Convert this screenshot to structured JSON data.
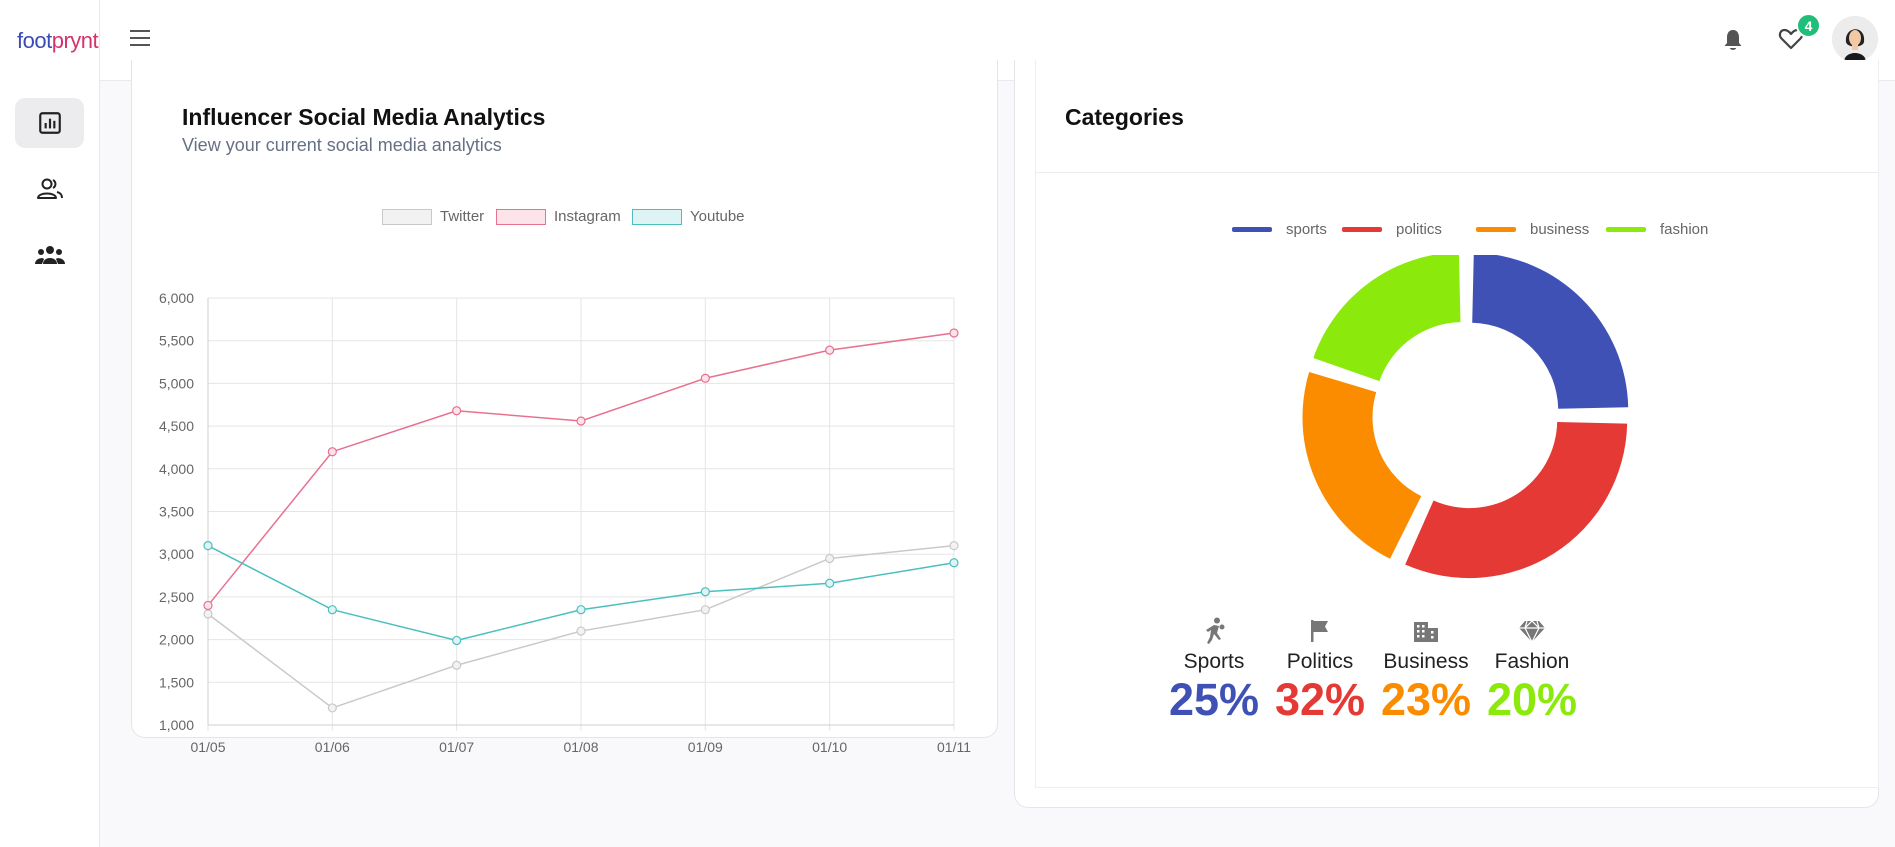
{
  "app": {
    "logo_part1": "foot",
    "logo_part2": "prynt"
  },
  "sidebar": {
    "items": [
      {
        "name": "analytics",
        "icon": "bar-chart-icon",
        "active": true
      },
      {
        "name": "users",
        "icon": "users-icon",
        "active": false
      },
      {
        "name": "groups",
        "icon": "group-icon",
        "active": false
      }
    ]
  },
  "header": {
    "notification_count": "4"
  },
  "analytics_card": {
    "title": "Influencer Social Media Analytics",
    "subtitle": "View your current social media analytics"
  },
  "categories_card": {
    "title": "Categories",
    "stats": [
      {
        "label": "Sports",
        "percent": "25%",
        "color": "#3f51b5",
        "icon": "sports-icon"
      },
      {
        "label": "Politics",
        "percent": "32%",
        "color": "#e53935",
        "icon": "flag-icon"
      },
      {
        "label": "Business",
        "percent": "23%",
        "color": "#fb8c00",
        "icon": "building-icon"
      },
      {
        "label": "Fashion",
        "percent": "20%",
        "color": "#8bea0c",
        "icon": "diamond-icon"
      }
    ]
  },
  "chart_data": [
    {
      "type": "line",
      "x": [
        "01/05",
        "01/06",
        "01/07",
        "01/08",
        "01/09",
        "01/10",
        "01/11"
      ],
      "ylim": [
        1000,
        6000
      ],
      "yticks": [
        "6,000",
        "5,500",
        "5,000",
        "4,500",
        "4,000",
        "3,500",
        "3,000",
        "2,500",
        "2,000",
        "1,500",
        "1,000"
      ],
      "grid": true,
      "legend_position": "top",
      "series": [
        {
          "name": "Twitter",
          "color": "#c9c9c9",
          "fill": "#f2f2f2",
          "values": [
            2300,
            1200,
            1700,
            2100,
            2350,
            2950,
            3100
          ]
        },
        {
          "name": "Instagram",
          "color": "#e8718f",
          "fill": "#fde3ea",
          "values": [
            2400,
            4200,
            4680,
            4560,
            5060,
            5390,
            5590
          ]
        },
        {
          "name": "Youtube",
          "color": "#4bbfbf",
          "fill": "#def4f4",
          "values": [
            3100,
            2350,
            1990,
            2350,
            2560,
            2660,
            2900
          ]
        }
      ]
    },
    {
      "type": "pie",
      "variant": "doughnut",
      "legend_position": "top",
      "categories": [
        "sports",
        "politics",
        "business",
        "fashion"
      ],
      "values": [
        25,
        32,
        23,
        20
      ],
      "colors": [
        "#3f51b5",
        "#e53935",
        "#fb8c00",
        "#8bea0c"
      ]
    }
  ]
}
